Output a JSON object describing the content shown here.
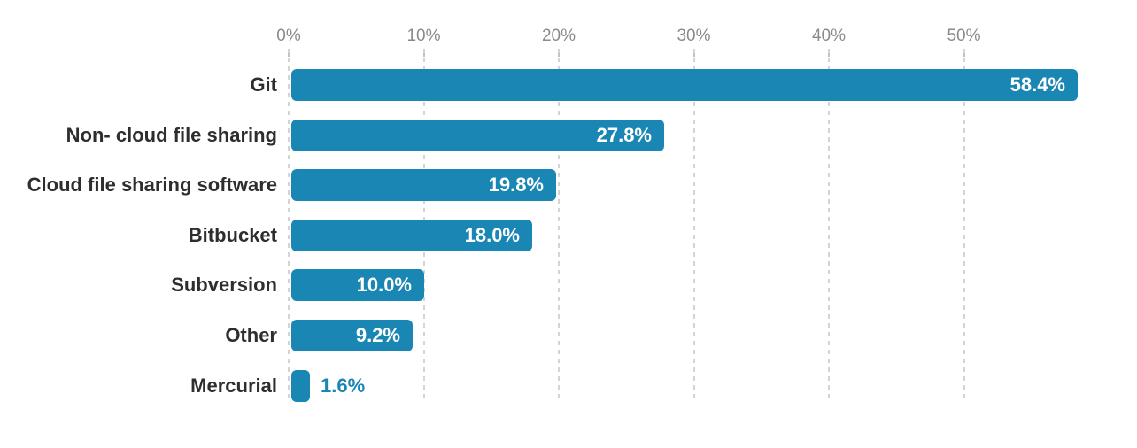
{
  "chart_data": {
    "type": "bar",
    "orientation": "horizontal",
    "categories": [
      "Git",
      "Non- cloud file sharing",
      "Cloud file sharing software",
      "Bitbucket",
      "Subversion",
      "Other",
      "Mercurial"
    ],
    "values": [
      58.4,
      27.8,
      19.8,
      18.0,
      10.0,
      9.2,
      1.6
    ],
    "value_labels": [
      "58.4%",
      "27.8%",
      "19.8%",
      "18.0%",
      "10.0%",
      "9.2%",
      "1.6%"
    ],
    "label_placement": [
      "inside",
      "inside",
      "inside",
      "inside",
      "inside",
      "inside",
      "outside"
    ],
    "x_ticks": [
      "0%",
      "10%",
      "20%",
      "30%",
      "40%",
      "50%"
    ],
    "x_tick_values": [
      0,
      10,
      20,
      30,
      40,
      50
    ],
    "xlim": [
      0,
      60
    ],
    "axis_position": "top",
    "grid": "dashed-vertical",
    "legend": "none",
    "bar_color": "#1a86b4",
    "value_label_inside_color": "#ffffff",
    "value_label_outside_color": "#1a86b4",
    "category_label_color": "#2e2e2e",
    "tick_label_color": "#8a8a8a",
    "gridline_color": "#d4d4d4",
    "background_color": "#ffffff"
  }
}
